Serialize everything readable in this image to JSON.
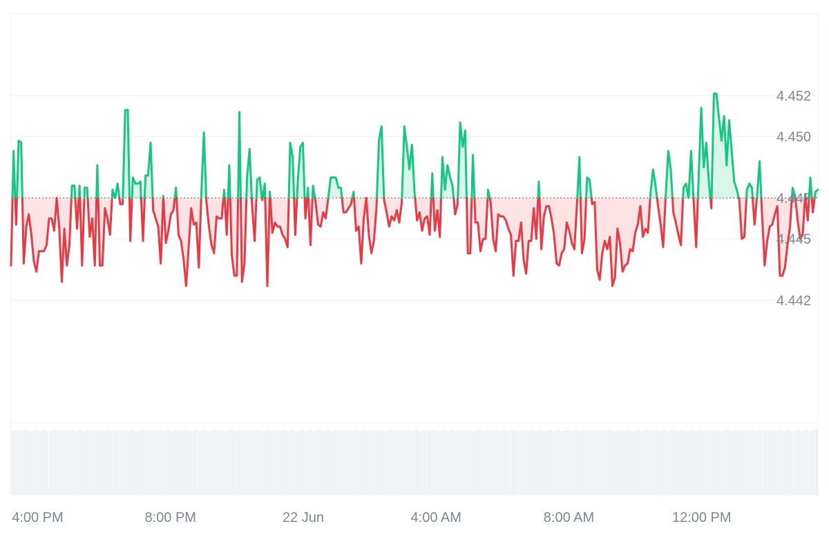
{
  "chart_data": {
    "type": "area",
    "baseline": 4.447,
    "ylim": [
      4.436,
      4.456
    ],
    "y_ticks": [
      "4.452",
      "4.450",
      "4.447",
      "4.445",
      "4.442"
    ],
    "y_tick_values": [
      4.452,
      4.45,
      4.447,
      4.445,
      4.442
    ],
    "x_labels": [
      "4:00 PM",
      "8:00 PM",
      "22 Jun",
      "4:00 AM",
      "8:00 AM",
      "12:00 PM"
    ],
    "x_label_times_hours": [
      16,
      20,
      24,
      28,
      32,
      36
    ],
    "x_range_hours": [
      15.2,
      39.5
    ],
    "colors": {
      "up": "#16c784",
      "down": "#ea3943",
      "up_fill": "#d9f6ea",
      "down_fill": "#fde3e4",
      "volume": "#eef2f5",
      "grid": "#eff2f5"
    },
    "series": [
      {
        "values": [
          4.4437,
          4.4493,
          4.4457,
          4.4498,
          4.4497,
          4.4438,
          4.4456,
          4.4462,
          4.4452,
          4.4439,
          4.4434,
          4.4444,
          4.4444,
          4.4444,
          4.4447,
          4.446,
          4.446,
          4.4454,
          4.447,
          4.4455,
          4.4429,
          4.4455,
          4.4437,
          4.4447,
          4.4476,
          4.4476,
          4.4455,
          4.4476,
          4.4437,
          4.4475,
          4.4475,
          4.4451,
          4.446,
          4.4437,
          4.4486,
          4.4437,
          4.4437,
          4.4465,
          4.446,
          4.4452,
          4.4474,
          4.447,
          4.4477,
          4.4467,
          4.4467,
          4.4513,
          4.4513,
          4.4449,
          4.448,
          4.4477,
          4.4477,
          4.4478,
          4.4449,
          4.4481,
          4.4481,
          4.4497,
          4.4464,
          4.446,
          4.4456,
          4.4438,
          4.4471,
          4.4448,
          4.4454,
          4.4462,
          4.4464,
          4.4475,
          4.4452,
          4.4449,
          4.444,
          4.4427,
          4.4446,
          4.4465,
          4.4457,
          4.4458,
          4.4436,
          4.4472,
          4.4502,
          4.4468,
          4.4456,
          4.4447,
          4.4443,
          4.4461,
          4.446,
          4.446,
          4.4474,
          4.4452,
          4.4486,
          4.4442,
          4.4432,
          4.4432,
          4.4512,
          4.4429,
          4.4438,
          4.448,
          4.4494,
          4.4466,
          4.4449,
          4.4479,
          4.448,
          4.4469,
          4.4477,
          4.4427,
          4.4473,
          4.4453,
          4.4458,
          4.4456,
          4.4456,
          4.4452,
          4.445,
          4.4446,
          4.4497,
          4.449,
          4.4452,
          4.4478,
          4.4495,
          4.4497,
          4.446,
          4.4475,
          4.4447,
          4.4476,
          4.4468,
          4.4457,
          4.4456,
          4.4463,
          4.446,
          4.447,
          4.448,
          4.448,
          4.448,
          4.4475,
          4.4475,
          4.4463,
          4.4463,
          4.4465,
          4.4467,
          4.4473,
          4.4454,
          4.4456,
          4.4438,
          4.446,
          4.447,
          4.4452,
          4.4443,
          4.4449,
          4.4465,
          4.4498,
          4.4505,
          4.4469,
          4.4463,
          4.4456,
          4.4461,
          4.4459,
          4.4464,
          4.4458,
          4.4468,
          4.4505,
          4.4495,
          4.4484,
          4.4496,
          4.4473,
          4.4459,
          4.4463,
          4.4454,
          4.446,
          4.4461,
          4.4452,
          4.4482,
          4.4454,
          4.4464,
          4.4451,
          4.449,
          4.4474,
          4.4486,
          4.448,
          4.4476,
          4.4462,
          4.4467,
          4.4507,
          4.4495,
          4.4503,
          4.4443,
          4.4443,
          4.4491,
          4.4458,
          4.4458,
          4.4444,
          4.445,
          4.445,
          4.4474,
          4.4468,
          4.445,
          4.4444,
          4.4462,
          4.4461,
          4.4461,
          4.4459,
          4.4455,
          4.4452,
          4.4432,
          4.4449,
          4.4449,
          4.4458,
          4.444,
          4.4433,
          4.4449,
          4.4449,
          4.4465,
          4.445,
          4.4478,
          4.4445,
          4.4461,
          4.4466,
          4.4466,
          4.446,
          4.4452,
          4.4438,
          4.4437,
          4.4443,
          4.4445,
          4.4458,
          4.4454,
          4.4448,
          4.4445,
          4.4466,
          4.449,
          4.4443,
          4.445,
          4.448,
          4.4479,
          4.4467,
          4.4468,
          4.4435,
          4.443,
          4.4443,
          4.4449,
          4.4445,
          4.4451,
          4.4427,
          4.4431,
          4.4455,
          4.4448,
          4.4434,
          4.4437,
          4.4438,
          4.4445,
          4.4444,
          4.4453,
          4.4457,
          4.4466,
          4.4451,
          4.4455,
          4.4453,
          4.4472,
          4.4484,
          4.4476,
          4.4466,
          4.4457,
          4.4446,
          4.4471,
          4.4493,
          4.4484,
          4.4463,
          4.4458,
          4.4452,
          4.4447,
          4.4475,
          4.4477,
          4.447,
          4.4493,
          4.4469,
          4.4446,
          4.4481,
          4.4514,
          4.4485,
          4.4497,
          4.4478,
          4.4465,
          4.4521,
          4.4521,
          4.4509,
          4.4498,
          4.451,
          4.4486,
          4.4508,
          4.4493,
          4.4478,
          4.4474,
          4.4469,
          4.445,
          4.4451,
          4.4474,
          4.4477,
          4.4475,
          4.4457,
          4.4471,
          4.4488,
          4.4461,
          4.4437,
          4.4449,
          4.4456,
          4.4457,
          4.4462,
          4.4466,
          4.4432,
          4.4432,
          4.4436,
          4.4447,
          4.4456,
          4.4475,
          4.4471,
          4.4459,
          4.445,
          4.4452,
          4.4472,
          4.4459,
          4.448,
          4.4463,
          4.4473,
          4.4474
        ]
      }
    ]
  }
}
